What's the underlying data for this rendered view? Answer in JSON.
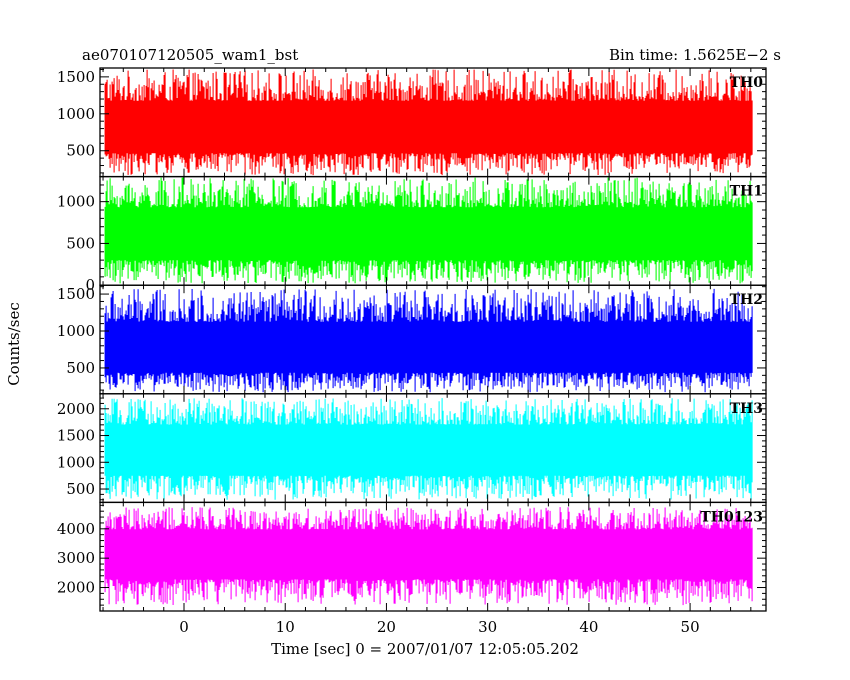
{
  "chart_data": {
    "type": "line",
    "title": "ae070107120505_wam1_bst",
    "bin_time_label": "Bin time: 1.5625E−2 s",
    "xlabel": "Time [sec] 0 = 2007/01/07 12:05:05.202",
    "ylabel": "Counts/sec",
    "xlim": [
      -8.3,
      57.5
    ],
    "data_xrange": [
      -7.8,
      56.2
    ],
    "xticks": [
      0,
      10,
      20,
      30,
      40,
      50
    ],
    "xtick_labels": [
      "0",
      "10",
      "20",
      "30",
      "40",
      "50"
    ],
    "grid": false,
    "panels": [
      {
        "name": "TH0",
        "color": "#ff0000",
        "ylim": [
          150,
          1620
        ],
        "yticks": [
          500,
          1000,
          1500
        ],
        "ytick_labels": [
          "500",
          "1000",
          "1500"
        ],
        "base_level": 830,
        "noise_low": 170,
        "noise_high": 1600
      },
      {
        "name": "TH1",
        "color": "#00ff00",
        "ylim": [
          0,
          1300
        ],
        "yticks": [
          0,
          500,
          1000
        ],
        "ytick_labels": [
          "0",
          "500",
          "1000"
        ],
        "base_level": 640,
        "noise_low": 20,
        "noise_high": 1290
      },
      {
        "name": "TH2",
        "color": "#0000ff",
        "ylim": [
          150,
          1620
        ],
        "yticks": [
          500,
          1000,
          1500
        ],
        "ytick_labels": [
          "500",
          "1000",
          "1500"
        ],
        "base_level": 760,
        "noise_low": 170,
        "noise_high": 1570
      },
      {
        "name": "TH3",
        "color": "#00ffff",
        "ylim": [
          250,
          2280
        ],
        "yticks": [
          500,
          1000,
          1500,
          2000
        ],
        "ytick_labels": [
          "500",
          "1000",
          "1500",
          "2000"
        ],
        "base_level": 1300,
        "noise_low": 300,
        "noise_high": 2200
      },
      {
        "name": "TH0123",
        "color": "#ff00ff",
        "ylim": [
          1200,
          4900
        ],
        "yticks": [
          2000,
          3000,
          4000
        ],
        "ytick_labels": [
          "2000",
          "3000",
          "4000"
        ],
        "base_level": 3350,
        "noise_low": 1400,
        "noise_high": 4750
      }
    ]
  }
}
